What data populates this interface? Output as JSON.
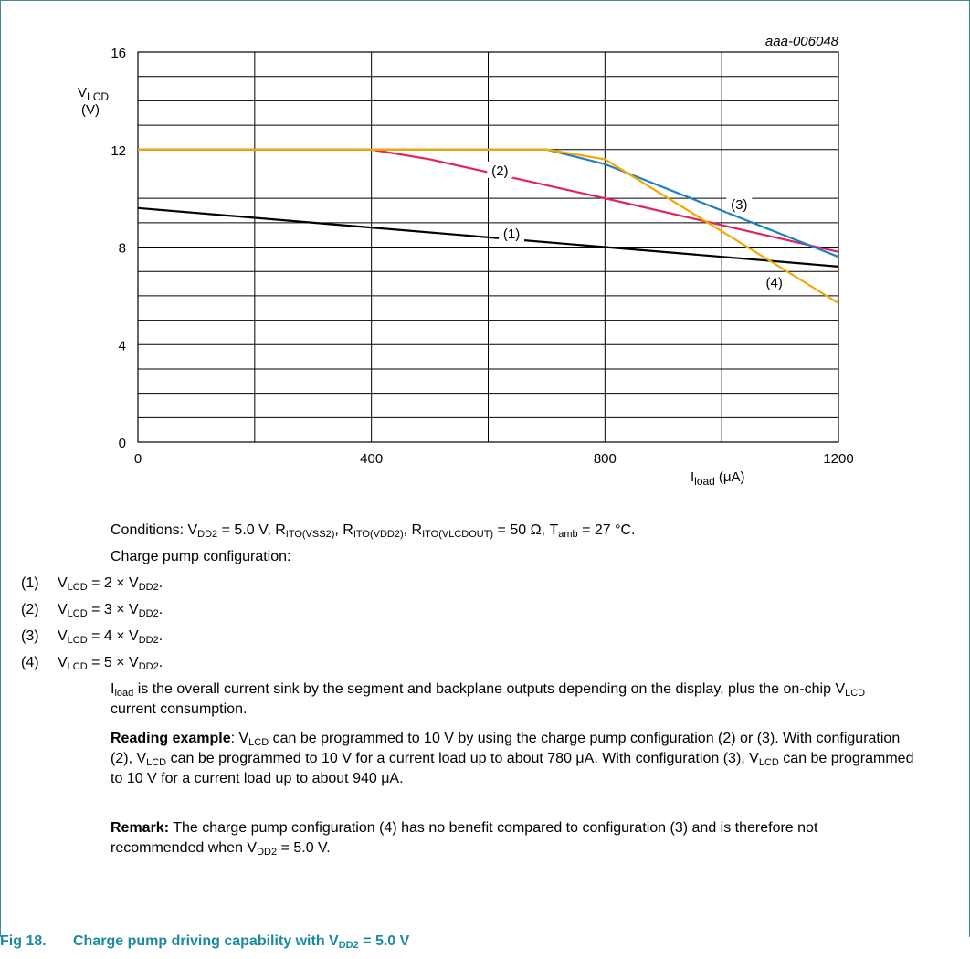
{
  "chart_data": {
    "type": "line",
    "code": "aaa-006048",
    "ylabel_main": "V",
    "ylabel_sub": "LCD",
    "ylabel_unit": "(V)",
    "xlabel_main": "I",
    "xlabel_sub": "load",
    "xlabel_unit": "(μA)",
    "xlim": [
      0,
      1200
    ],
    "ylim": [
      0,
      16
    ],
    "xticks": [
      "0",
      "400",
      "800",
      "1200"
    ],
    "yticks": [
      "0",
      "4",
      "8",
      "12",
      "16"
    ],
    "grid": true,
    "series": [
      {
        "name": "(1)",
        "color": "#000000",
        "x": [
          0,
          1200
        ],
        "y": [
          9.6,
          7.2
        ]
      },
      {
        "name": "(2)",
        "color": "#e0245e",
        "x": [
          0,
          400,
          500,
          800,
          1200
        ],
        "y": [
          12,
          12,
          11.6,
          10.0,
          7.8
        ]
      },
      {
        "name": "(3)",
        "color": "#1f7fc0",
        "x": [
          0,
          700,
          800,
          1200
        ],
        "y": [
          12,
          12,
          11.4,
          7.6
        ]
      },
      {
        "name": "(4)",
        "color": "#f5a800",
        "x": [
          0,
          700,
          800,
          1200
        ],
        "y": [
          12,
          12,
          11.6,
          5.7
        ]
      }
    ]
  },
  "notes": {
    "conditions": {
      "prefix": "Conditions: V",
      "vdd2_sub": "DD2",
      "vdd2_val": " = 5.0 V, R",
      "r1_sub": "ITO(VSS2)",
      "sep1": ", R",
      "r2_sub": "ITO(VDD2)",
      "sep2": ", R",
      "r3_sub": "ITO(VLCDOUT)",
      "tail1": " = 50 Ω, T",
      "tamb_sub": "amb",
      "tail2": " = 27 °C."
    },
    "config_heading": "Charge pump configuration:",
    "items": [
      {
        "num": "(1)",
        "pre": "V",
        "sub1": "LCD",
        "mid": " = 2 × V",
        "sub2": "DD2",
        "end": "."
      },
      {
        "num": "(2)",
        "pre": "V",
        "sub1": "LCD",
        "mid": " = 3 × V",
        "sub2": "DD2",
        "end": "."
      },
      {
        "num": "(3)",
        "pre": "V",
        "sub1": "LCD",
        "mid": " = 4 × V",
        "sub2": "DD2",
        "end": "."
      },
      {
        "num": "(4)",
        "pre": "V",
        "sub1": "LCD",
        "mid": " = 5 × V",
        "sub2": "DD2",
        "end": "."
      }
    ],
    "iload": {
      "pre": "I",
      "sub": "load",
      "text1": " is the overall current sink by the segment and backplane outputs depending on the display, plus the on-chip V",
      "sub2": "LCD",
      "text2": " current consumption."
    },
    "reading": {
      "bold": "Reading example",
      "t1": ": V",
      "s1": "LCD",
      "t2": " can be programmed to 10 V by using the charge pump configuration (2) or (3). With configuration (2), V",
      "s2": "LCD",
      "t3": " can be programmed to 10 V for a current load up to about 780 μA. With configuration (3), V",
      "s3": "LCD",
      "t4": " can be programmed to 10 V for a current load up to about 940 μA."
    },
    "remark": {
      "bold": "Remark:",
      "t1": " The charge pump configuration (4) has no benefit compared to configuration (3) and is therefore not recommended when V",
      "s1": "DD2",
      "t2": " = 5.0 V."
    }
  },
  "figure": {
    "label": "Fig 18.",
    "title_pre": "Charge pump driving capability with V",
    "title_sub": "DD2",
    "title_post": " = 5.0 V"
  }
}
